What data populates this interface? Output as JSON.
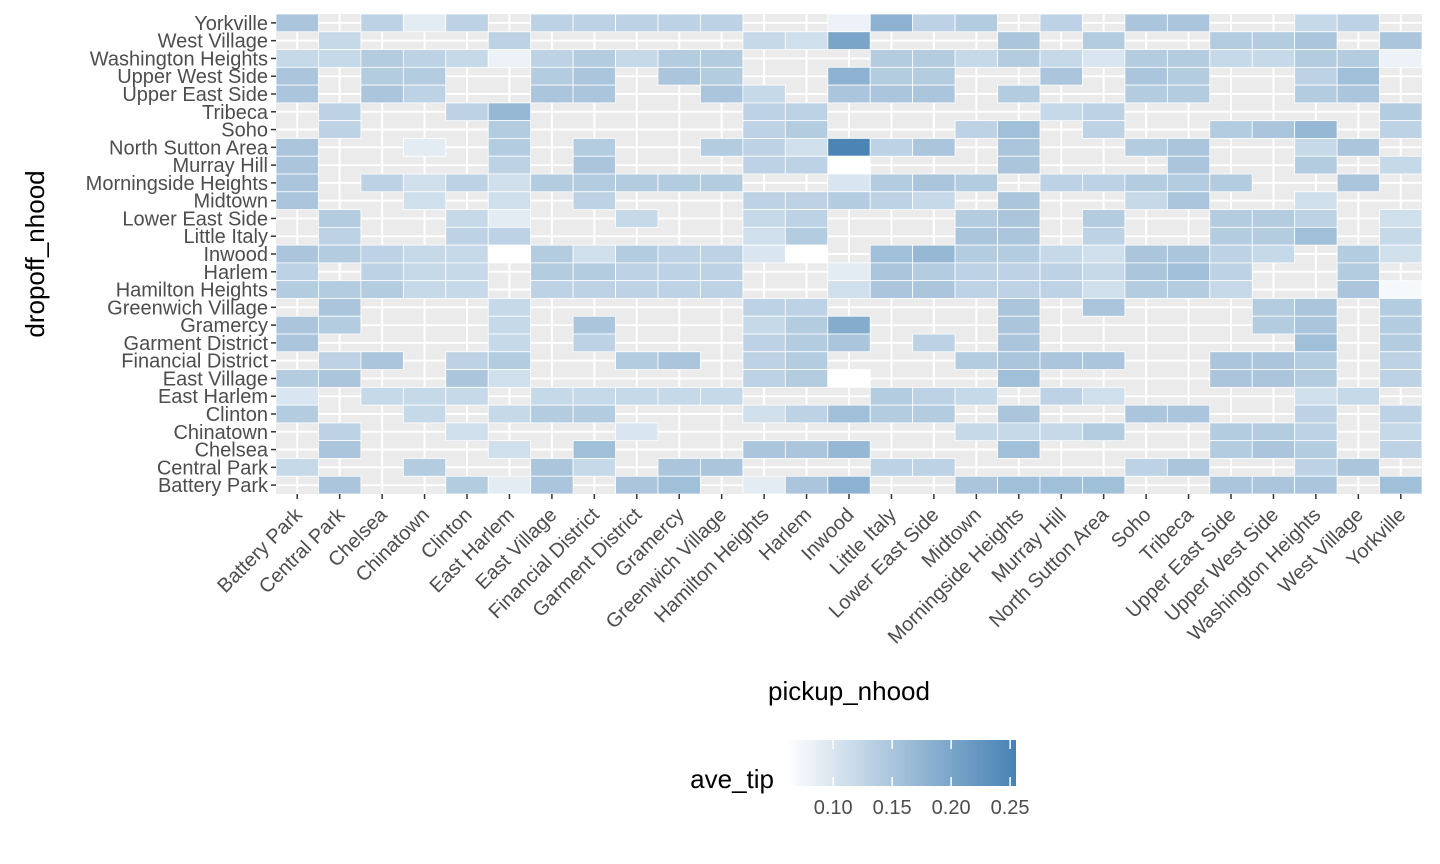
{
  "chart_data": {
    "type": "heatmap",
    "xlabel": "pickup_nhood",
    "ylabel": "dropoff_nhood",
    "x_categories": [
      "Battery Park",
      "Central Park",
      "Chelsea",
      "Chinatown",
      "Clinton",
      "East Harlem",
      "East Village",
      "Financial District",
      "Garment District",
      "Gramercy",
      "Greenwich Village",
      "Hamilton Heights",
      "Harlem",
      "Inwood",
      "Little Italy",
      "Lower East Side",
      "Midtown",
      "Morningside Heights",
      "Murray Hill",
      "North Sutton Area",
      "Soho",
      "Tribeca",
      "Upper East Side",
      "Upper West Side",
      "Washington Heights",
      "West Village",
      "Yorkville"
    ],
    "y_categories": [
      "Battery Park",
      "Central Park",
      "Chelsea",
      "Chinatown",
      "Clinton",
      "East Harlem",
      "East Village",
      "Financial District",
      "Garment District",
      "Gramercy",
      "Greenwich Village",
      "Hamilton Heights",
      "Harlem",
      "Inwood",
      "Little Italy",
      "Lower East Side",
      "Midtown",
      "Morningside Heights",
      "Murray Hill",
      "North Sutton Area",
      "Soho",
      "Tribeca",
      "Upper East Side",
      "Upper West Side",
      "Washington Heights",
      "West Village",
      "Yorkville"
    ],
    "value_range": [
      0.06,
      0.255
    ],
    "cells": [
      {
        "y": "Yorkville",
        "row": [
          0.15,
          null,
          0.13,
          0.09,
          0.13,
          null,
          0.13,
          0.13,
          0.13,
          0.13,
          0.13,
          null,
          null,
          0.08,
          0.18,
          0.13,
          0.14,
          null,
          0.13,
          null,
          0.15,
          0.15,
          null,
          null,
          0.12,
          0.13,
          null
        ]
      },
      {
        "y": "West Village",
        "row": [
          null,
          0.12,
          null,
          null,
          null,
          0.13,
          null,
          null,
          null,
          null,
          null,
          0.12,
          0.11,
          0.2,
          null,
          null,
          null,
          0.15,
          null,
          0.14,
          null,
          null,
          0.14,
          0.14,
          0.15,
          null,
          0.15
        ]
      },
      {
        "y": "Washington Heights",
        "row": [
          0.12,
          0.12,
          0.14,
          0.13,
          0.12,
          0.08,
          0.13,
          0.14,
          0.12,
          0.14,
          0.14,
          null,
          null,
          null,
          0.14,
          0.14,
          0.12,
          0.14,
          0.12,
          0.1,
          0.14,
          0.14,
          0.12,
          0.12,
          0.14,
          0.14,
          0.08
        ]
      },
      {
        "y": "Upper West Side",
        "row": [
          0.15,
          null,
          0.14,
          0.14,
          null,
          null,
          0.14,
          0.15,
          null,
          0.15,
          0.14,
          null,
          null,
          0.18,
          0.14,
          0.14,
          null,
          null,
          0.15,
          null,
          0.15,
          0.14,
          null,
          null,
          0.13,
          0.16,
          null
        ]
      },
      {
        "y": "Upper East Side",
        "row": [
          0.15,
          null,
          0.15,
          0.13,
          null,
          null,
          0.15,
          0.15,
          null,
          null,
          0.15,
          0.12,
          null,
          0.15,
          0.15,
          0.15,
          null,
          0.14,
          null,
          null,
          0.14,
          0.14,
          null,
          null,
          0.14,
          0.15,
          null
        ]
      },
      {
        "y": "Tribeca",
        "row": [
          null,
          0.13,
          null,
          null,
          0.13,
          0.17,
          null,
          null,
          null,
          null,
          null,
          0.13,
          0.13,
          null,
          null,
          null,
          null,
          null,
          0.12,
          0.13,
          null,
          null,
          null,
          null,
          null,
          null,
          0.14
        ]
      },
      {
        "y": "Soho",
        "row": [
          null,
          0.13,
          null,
          null,
          null,
          0.14,
          null,
          null,
          null,
          null,
          null,
          0.13,
          0.14,
          null,
          null,
          null,
          0.13,
          0.16,
          null,
          0.13,
          null,
          null,
          0.14,
          0.15,
          0.17,
          null,
          0.13
        ]
      },
      {
        "y": "North Sutton Area",
        "row": [
          0.15,
          null,
          null,
          0.09,
          null,
          0.14,
          null,
          0.14,
          null,
          null,
          0.14,
          0.13,
          0.11,
          0.25,
          0.13,
          0.15,
          null,
          0.15,
          null,
          null,
          0.14,
          0.15,
          null,
          null,
          0.12,
          0.15,
          null
        ]
      },
      {
        "y": "Murray Hill",
        "row": [
          0.15,
          null,
          null,
          null,
          null,
          0.13,
          null,
          0.15,
          null,
          null,
          null,
          0.13,
          0.13,
          0.06,
          null,
          null,
          null,
          0.15,
          null,
          null,
          null,
          0.15,
          null,
          null,
          0.14,
          null,
          0.12
        ]
      },
      {
        "y": "Morningside Heights",
        "row": [
          0.15,
          null,
          0.13,
          0.11,
          0.13,
          0.11,
          0.14,
          0.14,
          0.14,
          0.14,
          0.14,
          null,
          null,
          0.1,
          0.14,
          0.15,
          0.14,
          null,
          0.13,
          0.13,
          0.14,
          0.14,
          0.14,
          null,
          null,
          0.15,
          null
        ]
      },
      {
        "y": "Midtown",
        "row": [
          0.15,
          null,
          null,
          0.11,
          null,
          0.11,
          null,
          0.13,
          null,
          null,
          null,
          0.13,
          0.13,
          0.14,
          0.13,
          0.12,
          null,
          0.15,
          null,
          null,
          0.12,
          0.15,
          null,
          null,
          0.11,
          null,
          null
        ]
      },
      {
        "y": "Lower East Side",
        "row": [
          null,
          0.14,
          null,
          null,
          0.12,
          0.09,
          null,
          null,
          0.12,
          null,
          null,
          0.12,
          0.13,
          null,
          null,
          null,
          0.14,
          0.15,
          null,
          0.14,
          null,
          null,
          0.14,
          0.14,
          0.13,
          null,
          0.11
        ]
      },
      {
        "y": "Little Italy",
        "row": [
          null,
          0.13,
          null,
          null,
          0.13,
          0.13,
          null,
          null,
          null,
          null,
          null,
          0.11,
          0.14,
          null,
          null,
          null,
          0.15,
          0.15,
          null,
          0.13,
          null,
          null,
          0.14,
          0.14,
          0.16,
          null,
          0.12
        ]
      },
      {
        "y": "Inwood",
        "row": [
          0.15,
          0.14,
          0.13,
          0.12,
          0.12,
          0.06,
          0.14,
          0.11,
          0.14,
          0.13,
          0.13,
          0.1,
          0.06,
          null,
          0.16,
          0.17,
          0.14,
          0.14,
          0.12,
          0.11,
          0.15,
          0.15,
          0.13,
          0.12,
          null,
          0.14,
          0.11
        ]
      },
      {
        "y": "Harlem",
        "row": [
          0.13,
          null,
          0.13,
          0.12,
          0.12,
          null,
          0.14,
          0.14,
          0.13,
          0.13,
          0.13,
          null,
          null,
          0.09,
          0.15,
          0.14,
          0.13,
          0.13,
          0.13,
          0.12,
          0.15,
          0.16,
          0.13,
          null,
          null,
          0.14,
          null
        ]
      },
      {
        "y": "Hamilton Heights",
        "row": [
          0.14,
          0.14,
          0.14,
          0.12,
          0.12,
          null,
          0.13,
          0.13,
          0.13,
          0.13,
          0.13,
          null,
          null,
          0.11,
          0.15,
          0.15,
          0.13,
          0.13,
          0.13,
          0.11,
          0.14,
          0.14,
          0.12,
          null,
          null,
          0.15,
          0.07
        ]
      },
      {
        "y": "Greenwich Village",
        "row": [
          null,
          0.15,
          null,
          null,
          null,
          0.12,
          null,
          null,
          null,
          null,
          null,
          0.13,
          0.13,
          null,
          null,
          null,
          null,
          0.15,
          null,
          0.15,
          null,
          null,
          null,
          0.14,
          0.15,
          null,
          0.14
        ]
      },
      {
        "y": "Gramercy",
        "row": [
          0.15,
          0.14,
          null,
          null,
          null,
          0.12,
          null,
          0.15,
          null,
          null,
          null,
          0.12,
          0.14,
          0.19,
          null,
          null,
          null,
          0.15,
          null,
          null,
          null,
          null,
          null,
          0.14,
          0.15,
          null,
          0.14
        ]
      },
      {
        "y": "Garment District",
        "row": [
          0.15,
          null,
          null,
          null,
          null,
          0.12,
          null,
          0.13,
          null,
          null,
          null,
          0.13,
          0.14,
          0.15,
          null,
          0.13,
          null,
          0.15,
          null,
          null,
          null,
          null,
          null,
          null,
          0.16,
          null,
          0.14
        ]
      },
      {
        "y": "Financial District",
        "row": [
          null,
          0.13,
          0.15,
          null,
          0.13,
          0.14,
          null,
          null,
          0.14,
          0.15,
          null,
          0.13,
          0.14,
          null,
          null,
          null,
          0.14,
          0.15,
          0.15,
          0.15,
          null,
          null,
          0.15,
          0.15,
          0.14,
          null,
          0.13
        ]
      },
      {
        "y": "East Village",
        "row": [
          0.14,
          0.15,
          null,
          null,
          0.15,
          0.11,
          null,
          null,
          null,
          null,
          null,
          0.13,
          0.14,
          0.06,
          null,
          null,
          null,
          0.16,
          null,
          null,
          null,
          null,
          0.15,
          0.15,
          0.14,
          null,
          0.13
        ]
      },
      {
        "y": "East Harlem",
        "row": [
          0.1,
          null,
          0.12,
          0.12,
          0.12,
          null,
          0.12,
          0.12,
          0.12,
          0.12,
          0.12,
          null,
          null,
          null,
          0.14,
          0.13,
          0.12,
          null,
          0.13,
          0.11,
          null,
          null,
          null,
          null,
          0.11,
          0.12,
          null
        ]
      },
      {
        "y": "Clinton",
        "row": [
          0.14,
          null,
          null,
          0.12,
          null,
          0.12,
          0.14,
          0.14,
          null,
          null,
          null,
          0.11,
          0.13,
          0.16,
          0.14,
          0.14,
          null,
          0.15,
          null,
          null,
          0.15,
          0.15,
          null,
          null,
          0.13,
          null,
          0.13
        ]
      },
      {
        "y": "Chinatown",
        "row": [
          null,
          0.13,
          null,
          null,
          0.11,
          null,
          null,
          null,
          0.1,
          null,
          null,
          null,
          null,
          null,
          null,
          null,
          0.12,
          0.12,
          0.12,
          0.14,
          null,
          null,
          0.14,
          0.14,
          0.13,
          null,
          0.12
        ]
      },
      {
        "y": "Chelsea",
        "row": [
          null,
          0.15,
          null,
          null,
          null,
          0.11,
          null,
          0.16,
          null,
          null,
          null,
          0.15,
          0.15,
          0.17,
          null,
          null,
          null,
          0.16,
          null,
          null,
          null,
          null,
          0.14,
          0.15,
          0.14,
          null,
          0.13
        ]
      },
      {
        "y": "Central Park",
        "row": [
          0.12,
          null,
          null,
          0.14,
          null,
          null,
          0.15,
          0.12,
          null,
          0.15,
          0.15,
          null,
          null,
          null,
          0.13,
          0.13,
          null,
          null,
          null,
          null,
          0.13,
          0.15,
          null,
          null,
          0.13,
          0.15,
          null
        ]
      },
      {
        "y": "Battery Park",
        "row": [
          null,
          0.15,
          null,
          null,
          0.14,
          0.09,
          0.15,
          null,
          0.15,
          0.16,
          null,
          0.09,
          0.15,
          0.18,
          null,
          null,
          0.15,
          0.16,
          0.16,
          0.16,
          null,
          null,
          0.15,
          0.15,
          0.15,
          null,
          0.16
        ]
      }
    ],
    "legend": {
      "title": "ave_tip",
      "ticks": [
        "0.10",
        "0.15",
        "0.20",
        "0.25"
      ],
      "tick_values": [
        0.1,
        0.15,
        0.2,
        0.25
      ],
      "position": "bottom",
      "low_color": "#ffffff",
      "high_color": "#4682b4"
    },
    "panel_background": "#ebebeb",
    "grid": "on"
  }
}
